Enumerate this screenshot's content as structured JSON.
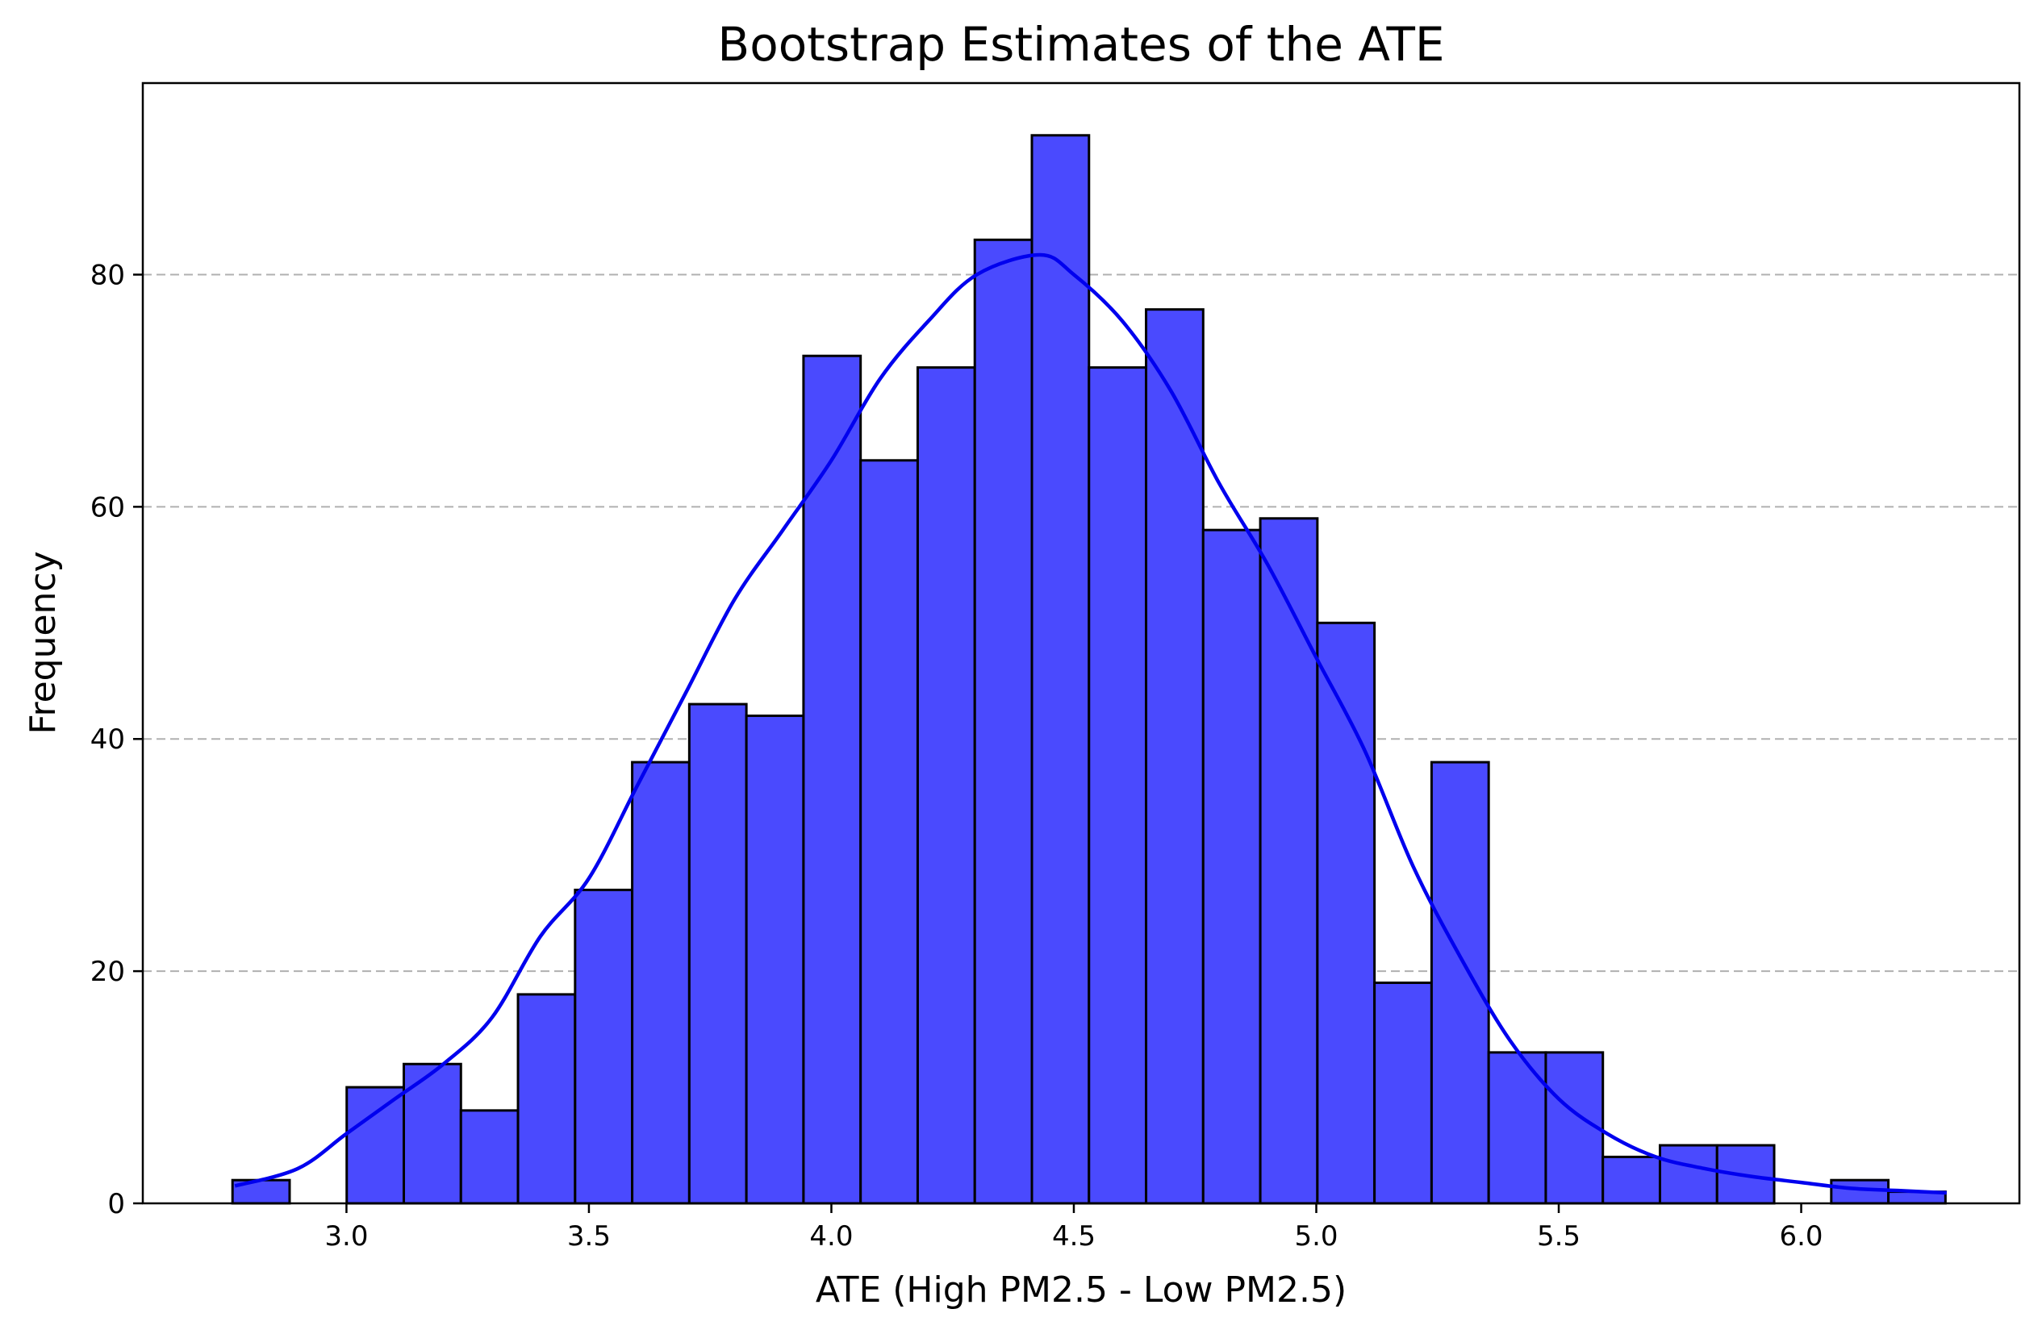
{
  "chart_data": {
    "type": "bar",
    "subtype": "histogram",
    "title": "Bootstrap Estimates of the ATE",
    "xlabel": "ATE (High PM2.5 - Low PM2.5)",
    "ylabel": "Frequency",
    "xlim": [
      2.58,
      6.45
    ],
    "ylim": [
      0,
      96.5
    ],
    "xticks": [
      {
        "value": 3.0,
        "label": "3.0"
      },
      {
        "value": 3.5,
        "label": "3.5"
      },
      {
        "value": 4.0,
        "label": "4.0"
      },
      {
        "value": 4.5,
        "label": "4.5"
      },
      {
        "value": 5.0,
        "label": "5.0"
      },
      {
        "value": 5.5,
        "label": "5.5"
      },
      {
        "value": 6.0,
        "label": "6.0"
      }
    ],
    "yticks": [
      {
        "value": 0,
        "label": "0"
      },
      {
        "value": 20,
        "label": "20"
      },
      {
        "value": 40,
        "label": "40"
      },
      {
        "value": 60,
        "label": "60"
      },
      {
        "value": 80,
        "label": "80"
      }
    ],
    "grid": "y-dashed",
    "bin_start": 2.765,
    "bin_width": 0.11775,
    "counts": [
      2,
      0,
      10,
      12,
      8,
      18,
      27,
      38,
      43,
      42,
      73,
      64,
      72,
      83,
      92,
      72,
      77,
      58,
      59,
      50,
      19,
      38,
      13,
      13,
      4,
      5,
      5,
      0,
      2,
      1
    ],
    "kde": {
      "x": [
        2.77,
        2.9,
        3.0,
        3.1,
        3.2,
        3.3,
        3.4,
        3.5,
        3.6,
        3.7,
        3.8,
        3.9,
        4.0,
        4.1,
        4.2,
        4.3,
        4.43,
        4.5,
        4.6,
        4.7,
        4.8,
        4.9,
        5.0,
        5.1,
        5.2,
        5.3,
        5.4,
        5.5,
        5.6,
        5.7,
        5.8,
        5.9,
        6.0,
        6.1,
        6.2,
        6.3
      ],
      "y": [
        1.5,
        3,
        6,
        9,
        12,
        16,
        23,
        28,
        36,
        44,
        52,
        58,
        64,
        71,
        76,
        80,
        81.7,
        80,
        76,
        70,
        62,
        55,
        47,
        39,
        29,
        21,
        14,
        9,
        6,
        4,
        3,
        2.3,
        1.8,
        1.3,
        1.1,
        0.9
      ]
    },
    "colors": {
      "bar_fill": "#4a4afe",
      "bar_edge": "#000000",
      "kde_line": "#0000ee",
      "grid": "#b0b0b0"
    }
  }
}
